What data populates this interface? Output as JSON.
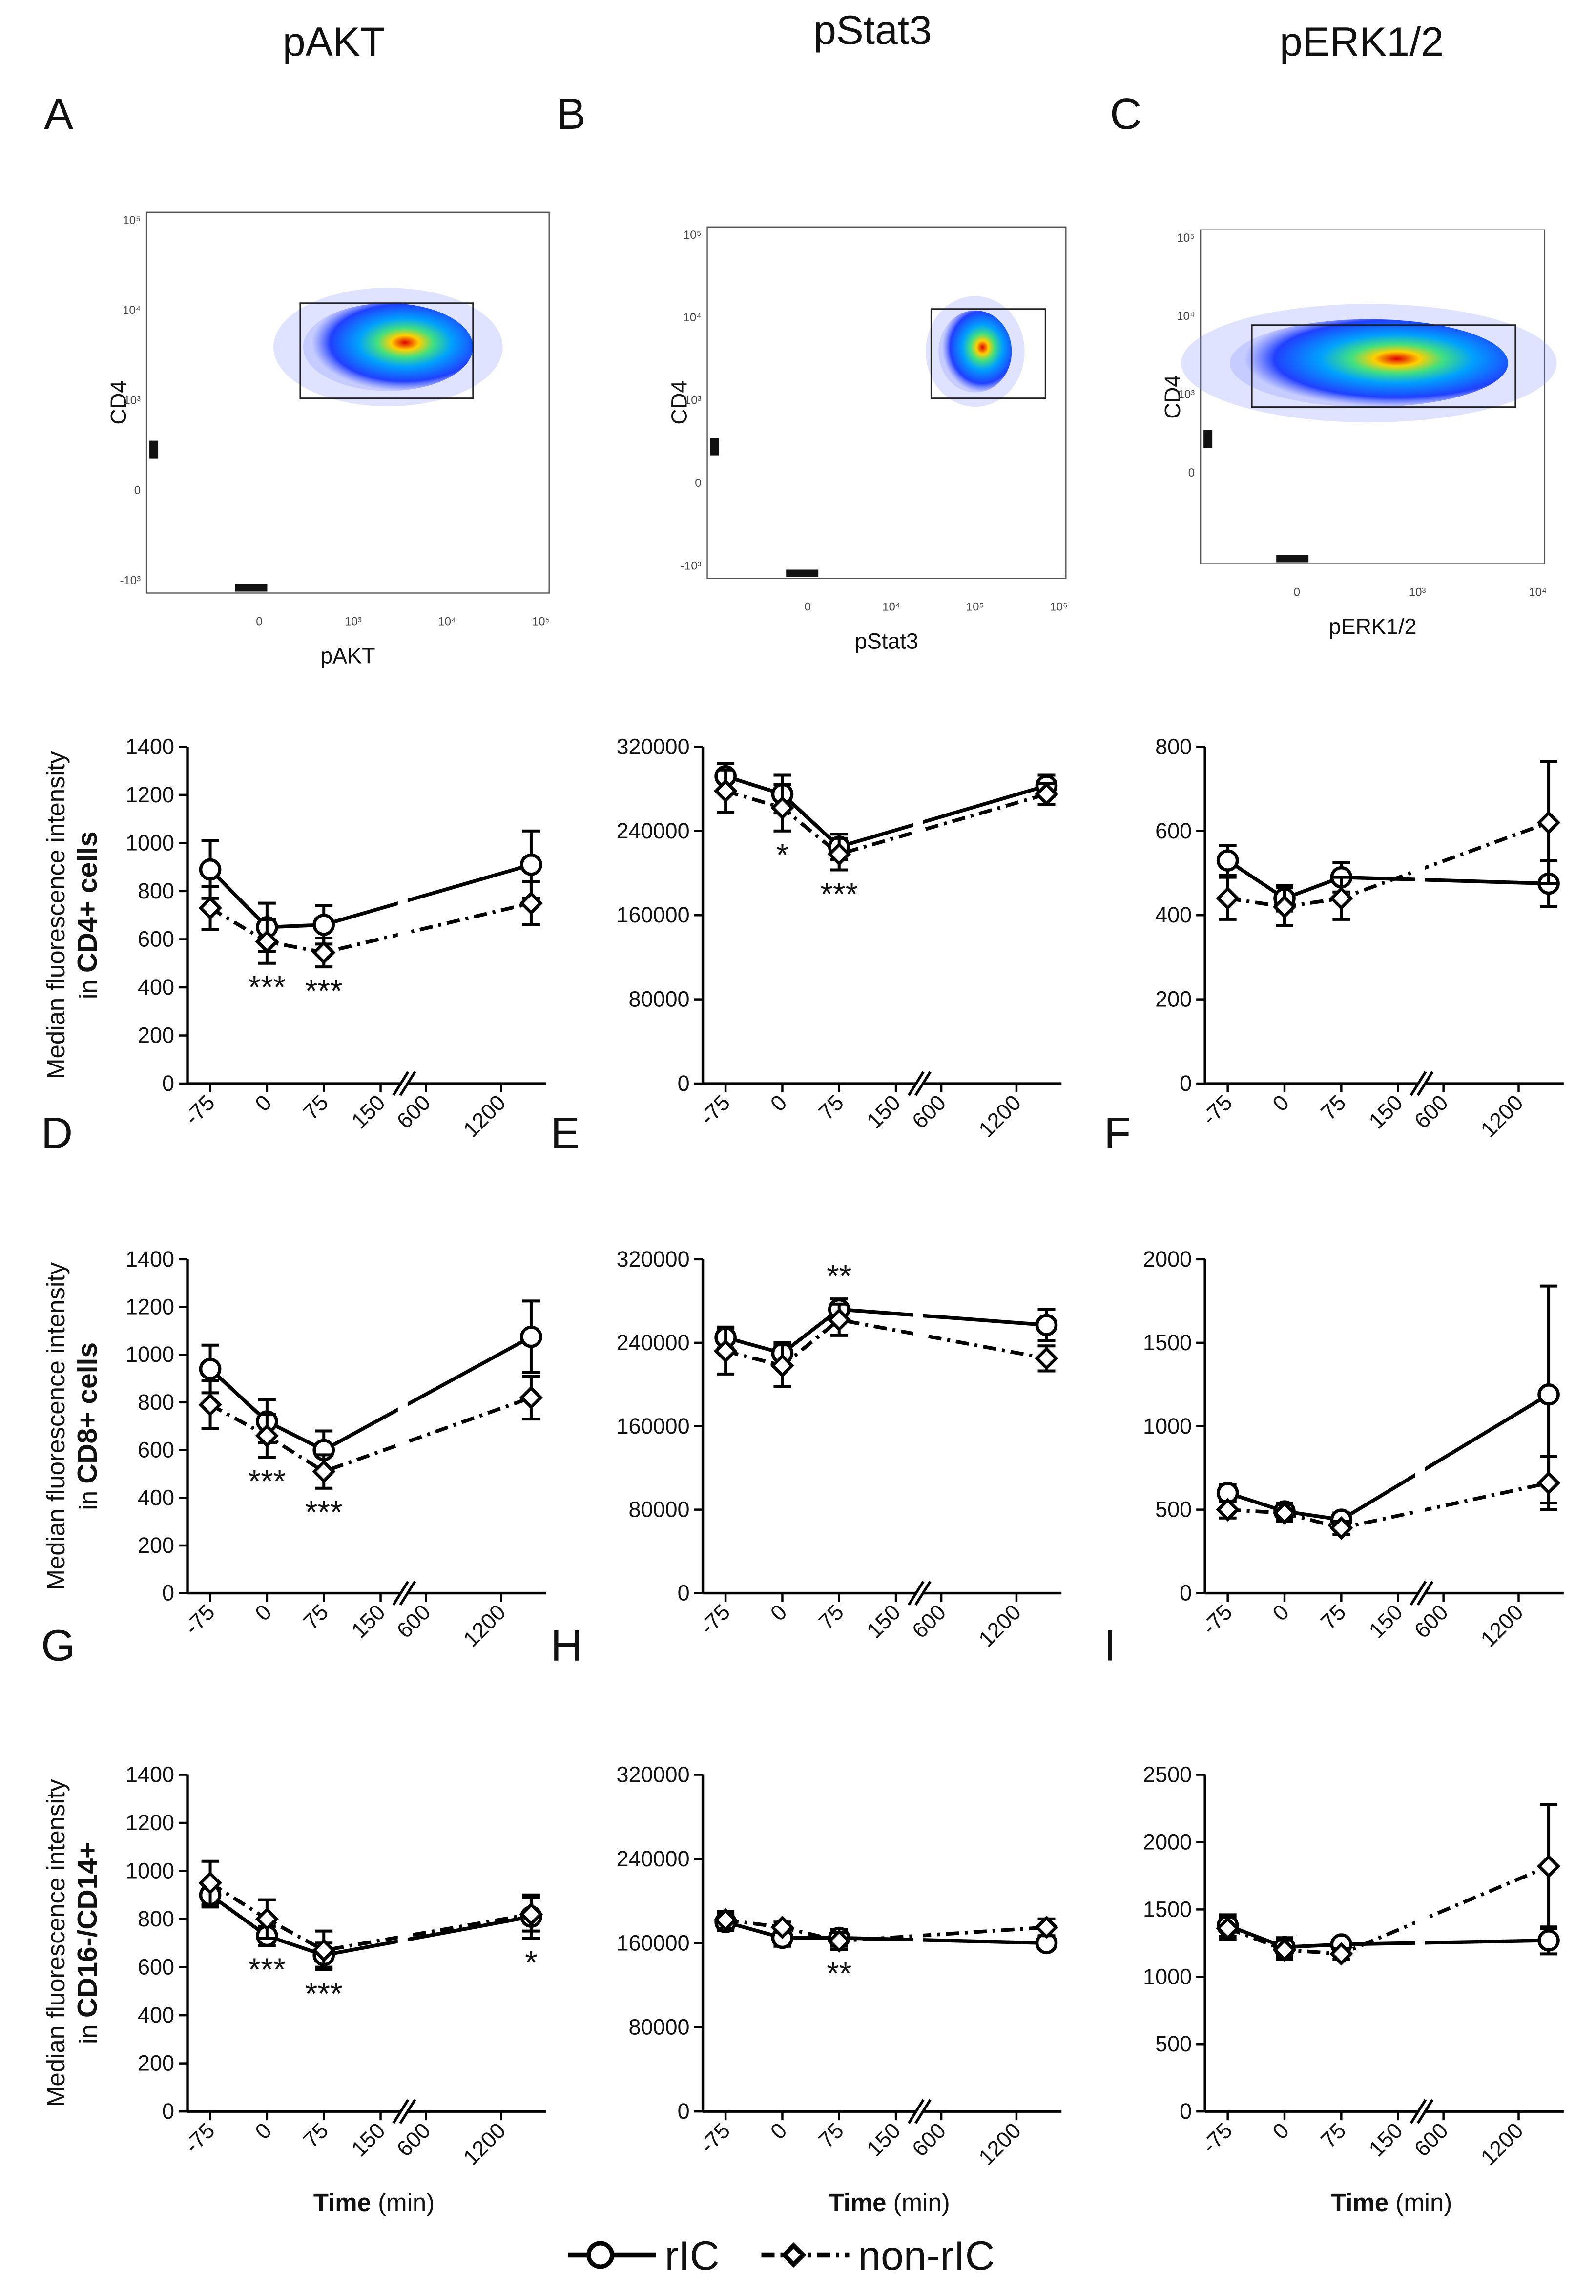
{
  "headings": [
    "pAKT",
    "pStat3",
    "pERK1/2"
  ],
  "panel_letters": [
    "A",
    "B",
    "C",
    "D",
    "E",
    "F",
    "G",
    "H",
    "I"
  ],
  "flow_plots": [
    {
      "x_label": "pAKT",
      "y_label": "CD4",
      "xticks": [
        "0",
        "10³",
        "10⁴",
        "10⁵"
      ],
      "yticks": [
        "10⁵",
        "10⁴",
        "10³",
        "0",
        "-10³"
      ]
    },
    {
      "x_label": "pStat3",
      "y_label": "CD4",
      "xticks": [
        "0",
        "10⁴",
        "10⁵",
        "10⁶"
      ],
      "yticks": [
        "10⁵",
        "10⁴",
        "10³",
        "0",
        "-10³"
      ]
    },
    {
      "x_label": "pERK1/2",
      "y_label": "CD4",
      "xticks": [
        "0",
        "10³",
        "10⁴"
      ],
      "yticks": [
        "10⁵",
        "10⁴",
        "10³",
        "0"
      ]
    }
  ],
  "legend": [
    {
      "name": "rIC",
      "color": "#000000",
      "marker": "circle",
      "dash": "solid"
    },
    {
      "name": "non-rIC",
      "color": "#000000",
      "marker": "diamond",
      "dash": "dashdot"
    }
  ],
  "chart_data": [
    {
      "type": "line",
      "y_label": [
        "Median fluorescence intensity",
        "in",
        "CD4+ cells"
      ],
      "x": [
        -75,
        0,
        75,
        1440
      ],
      "xlim": [
        -105,
        1560
      ],
      "x_break": [
        165,
        500
      ],
      "xticks": [
        -75,
        0,
        75,
        150,
        600,
        1200
      ],
      "ylim": [
        0,
        1400
      ],
      "yticks": [
        0,
        200,
        400,
        600,
        800,
        1000,
        1200,
        1400
      ],
      "series": [
        {
          "values": [
            890,
            650,
            660,
            910
          ],
          "errors": [
            120,
            100,
            80,
            140
          ]
        },
        {
          "values": [
            730,
            590,
            545,
            750
          ],
          "errors": [
            90,
            90,
            60,
            90
          ]
        }
      ],
      "annotations": [
        {
          "text": "***",
          "x": 0,
          "side": "below"
        },
        {
          "text": "***",
          "x": 75,
          "side": "below"
        }
      ]
    },
    {
      "type": "line",
      "x": [
        -75,
        0,
        75,
        1440
      ],
      "xlim": [
        -105,
        1560
      ],
      "x_break": [
        165,
        500
      ],
      "xticks": [
        -75,
        0,
        75,
        150,
        600,
        1200
      ],
      "ylim": [
        0,
        320000
      ],
      "yticks": [
        0,
        80000,
        160000,
        240000,
        320000
      ],
      "series": [
        {
          "values": [
            292000,
            275000,
            225000,
            283000
          ],
          "errors": [
            12000,
            18000,
            12000,
            10000
          ]
        },
        {
          "values": [
            278000,
            262000,
            218000,
            275000
          ],
          "errors": [
            20000,
            22000,
            15000,
            10000
          ]
        }
      ],
      "annotations": [
        {
          "text": "*",
          "x": 0,
          "side": "below"
        },
        {
          "text": "***",
          "x": 75,
          "side": "below"
        }
      ]
    },
    {
      "type": "line",
      "x": [
        -75,
        0,
        75,
        1440
      ],
      "xlim": [
        -105,
        1560
      ],
      "x_break": [
        165,
        500
      ],
      "xticks": [
        -75,
        0,
        75,
        150,
        600,
        1200
      ],
      "ylim": [
        0,
        800
      ],
      "yticks": [
        0,
        200,
        400,
        600,
        800
      ],
      "series": [
        {
          "values": [
            530,
            440,
            490,
            475
          ],
          "errors": [
            35,
            30,
            35,
            55
          ]
        },
        {
          "values": [
            440,
            420,
            440,
            620
          ],
          "errors": [
            50,
            45,
            50,
            145
          ]
        }
      ],
      "annotations": []
    },
    {
      "type": "line",
      "y_label": [
        "Median fluorescence intensity",
        "in",
        "CD8+ cells"
      ],
      "x": [
        -75,
        0,
        75,
        1440
      ],
      "xlim": [
        -105,
        1560
      ],
      "x_break": [
        165,
        500
      ],
      "xticks": [
        -75,
        0,
        75,
        150,
        600,
        1200
      ],
      "ylim": [
        0,
        1400
      ],
      "yticks": [
        0,
        200,
        400,
        600,
        800,
        1000,
        1200,
        1400
      ],
      "series": [
        {
          "values": [
            940,
            720,
            600,
            1075
          ],
          "errors": [
            100,
            90,
            80,
            150
          ]
        },
        {
          "values": [
            790,
            660,
            510,
            820
          ],
          "errors": [
            100,
            90,
            70,
            90
          ]
        }
      ],
      "annotations": [
        {
          "text": "***",
          "x": 0,
          "side": "below"
        },
        {
          "text": "***",
          "x": 75,
          "side": "below"
        }
      ]
    },
    {
      "type": "line",
      "x": [
        -75,
        0,
        75,
        1440
      ],
      "xlim": [
        -105,
        1560
      ],
      "x_break": [
        165,
        500
      ],
      "xticks": [
        -75,
        0,
        75,
        150,
        600,
        1200
      ],
      "ylim": [
        0,
        320000
      ],
      "yticks": [
        0,
        80000,
        160000,
        240000,
        320000
      ],
      "series": [
        {
          "values": [
            245000,
            230000,
            272000,
            257000
          ],
          "errors": [
            10000,
            10000,
            10000,
            15000
          ]
        },
        {
          "values": [
            232000,
            218000,
            262000,
            225000
          ],
          "errors": [
            22000,
            20000,
            15000,
            12000
          ]
        }
      ],
      "annotations": [
        {
          "text": "**",
          "x": 75,
          "side": "above"
        }
      ]
    },
    {
      "type": "line",
      "x": [
        -75,
        0,
        75,
        1440
      ],
      "xlim": [
        -105,
        1560
      ],
      "x_break": [
        165,
        500
      ],
      "xticks": [
        -75,
        0,
        75,
        150,
        600,
        1200
      ],
      "ylim": [
        0,
        2000
      ],
      "yticks": [
        0,
        500,
        1000,
        1500,
        2000
      ],
      "series": [
        {
          "values": [
            600,
            490,
            440,
            1190
          ],
          "errors": [
            50,
            50,
            40,
            650
          ]
        },
        {
          "values": [
            500,
            480,
            390,
            660
          ],
          "errors": [
            50,
            50,
            40,
            160
          ]
        }
      ],
      "annotations": []
    },
    {
      "type": "line",
      "y_label": [
        "Median fluorescence intensity",
        "in",
        "CD16-/CD14+"
      ],
      "x_label": [
        "Time",
        "(min)"
      ],
      "x": [
        -75,
        0,
        75,
        1440
      ],
      "xlim": [
        -105,
        1560
      ],
      "x_break": [
        165,
        500
      ],
      "xticks": [
        -75,
        0,
        75,
        150,
        600,
        1200
      ],
      "ylim": [
        0,
        1400
      ],
      "yticks": [
        0,
        200,
        400,
        600,
        800,
        1000,
        1200,
        1400
      ],
      "series": [
        {
          "values": [
            900,
            730,
            650,
            810
          ],
          "errors": [
            50,
            40,
            50,
            90
          ]
        },
        {
          "values": [
            950,
            800,
            670,
            820
          ],
          "errors": [
            90,
            80,
            80,
            70
          ]
        }
      ],
      "annotations": [
        {
          "text": "***",
          "x": 0,
          "side": "below"
        },
        {
          "text": "***",
          "x": 75,
          "side": "below"
        },
        {
          "text": "*",
          "x": 1440,
          "side": "below"
        }
      ]
    },
    {
      "type": "line",
      "x_label": [
        "Time",
        "(min)"
      ],
      "x": [
        -75,
        0,
        75,
        1440
      ],
      "xlim": [
        -105,
        1560
      ],
      "x_break": [
        165,
        500
      ],
      "xticks": [
        -75,
        0,
        75,
        150,
        600,
        1200
      ],
      "ylim": [
        0,
        320000
      ],
      "yticks": [
        0,
        80000,
        160000,
        240000,
        320000
      ],
      "series": [
        {
          "values": [
            180000,
            165000,
            165000,
            160000
          ],
          "errors": [
            8000,
            8000,
            8000,
            5000
          ]
        },
        {
          "values": [
            182000,
            175000,
            162000,
            175000
          ],
          "errors": [
            8000,
            5000,
            8000,
            8000
          ]
        }
      ],
      "annotations": [
        {
          "text": "**",
          "x": 75,
          "side": "below"
        }
      ]
    },
    {
      "type": "line",
      "x_label": [
        "Time",
        "(min)"
      ],
      "x": [
        -75,
        0,
        75,
        1440
      ],
      "xlim": [
        -105,
        1560
      ],
      "x_break": [
        165,
        500
      ],
      "xticks": [
        -75,
        0,
        75,
        150,
        600,
        1200
      ],
      "ylim": [
        0,
        2500
      ],
      "yticks": [
        0,
        500,
        1000,
        1500,
        2000,
        2500
      ],
      "series": [
        {
          "values": [
            1380,
            1220,
            1240,
            1270
          ],
          "errors": [
            80,
            70,
            40,
            100
          ]
        },
        {
          "values": [
            1360,
            1200,
            1170,
            1820
          ],
          "errors": [
            80,
            70,
            40,
            460
          ]
        }
      ],
      "annotations": []
    }
  ]
}
